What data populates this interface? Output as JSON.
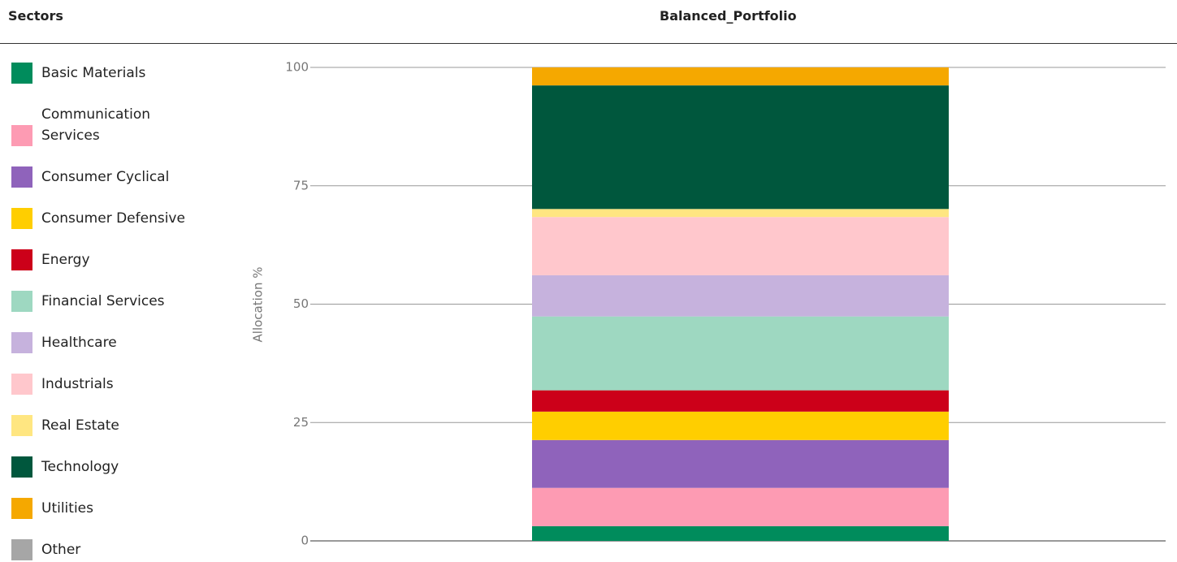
{
  "chart_data": {
    "type": "stacked_bar",
    "legend_title": "Sectors",
    "categories": [
      "Balanced_Portfolio"
    ],
    "ylabel": "Allocation %",
    "ylim": [
      0,
      100
    ],
    "yticks": [
      0,
      25,
      50,
      75,
      100
    ],
    "grid": true,
    "series": [
      {
        "name": "Basic Materials",
        "color": "#008c5c",
        "values": [
          3.1
        ]
      },
      {
        "name": "Communication Services",
        "color": "#fd9bb3",
        "values": [
          8.1
        ]
      },
      {
        "name": "Consumer Cyclical",
        "color": "#8f63bb",
        "values": [
          10.1
        ]
      },
      {
        "name": "Consumer Defensive",
        "color": "#ffce00",
        "values": [
          6.0
        ]
      },
      {
        "name": "Energy",
        "color": "#cc0019",
        "values": [
          4.5
        ]
      },
      {
        "name": "Financial Services",
        "color": "#9ed8c1",
        "values": [
          15.6
        ]
      },
      {
        "name": "Healthcare",
        "color": "#c6b2dd",
        "values": [
          8.7
        ]
      },
      {
        "name": "Industrials",
        "color": "#ffc7cc",
        "values": [
          12.3
        ]
      },
      {
        "name": "Real Estate",
        "color": "#ffe681",
        "values": [
          1.7
        ]
      },
      {
        "name": "Technology",
        "color": "#00573d",
        "values": [
          26.1
        ]
      },
      {
        "name": "Utilities",
        "color": "#f5a800",
        "values": [
          3.8
        ]
      },
      {
        "name": "Other",
        "color": "#a6a6a6",
        "values": [
          0
        ]
      }
    ]
  }
}
